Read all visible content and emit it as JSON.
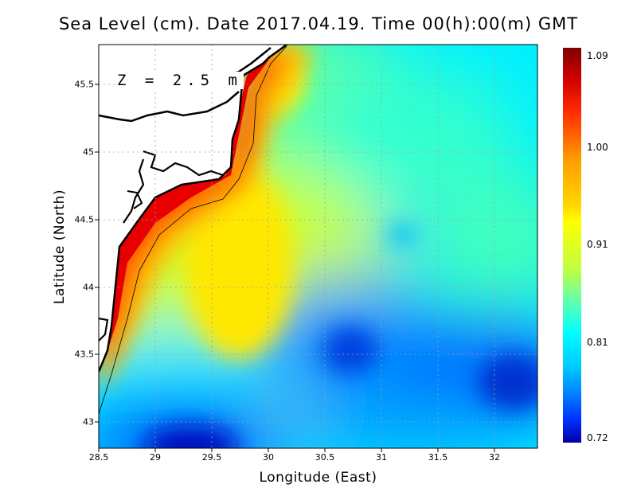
{
  "title": "Sea Level (cm). Date 2017.04.19. Time 00(h):00(m) GMT",
  "depth_label": "Z = 2.5 m",
  "x_axis": {
    "label": "Longitude (East)",
    "range": [
      28.5,
      32.4
    ],
    "ticks": [
      "28.5",
      "29",
      "29.5",
      "30",
      "30.5",
      "31",
      "31.5",
      "32"
    ]
  },
  "y_axis": {
    "label": "Latitude (North)",
    "range": [
      42.8,
      45.8
    ],
    "ticks": [
      "43",
      "43.5",
      "44",
      "44.5",
      "45",
      "45.5"
    ]
  },
  "colorbar": {
    "range": [
      0.72,
      1.09
    ],
    "labels": [
      "1.09",
      "1.00",
      "0.91",
      "0.81",
      "0.72"
    ]
  },
  "chart_data": {
    "type": "heatmap",
    "variable": "Sea Level (cm)",
    "value_range": [
      0.72,
      1.09
    ],
    "features": {
      "coastal_maximum": {
        "value": 1.09,
        "lon": 29.7,
        "lat": 45.6
      },
      "blue_minimum_west": {
        "value": 0.72,
        "lon": 29.2,
        "lat": 42.9
      },
      "blue_minimum_central": {
        "value": 0.79,
        "lon": 30.8,
        "lat": 43.55
      },
      "blue_minimum_east": {
        "value": 0.77,
        "lon": 32.2,
        "lat": 43.3
      }
    },
    "grid": true
  }
}
